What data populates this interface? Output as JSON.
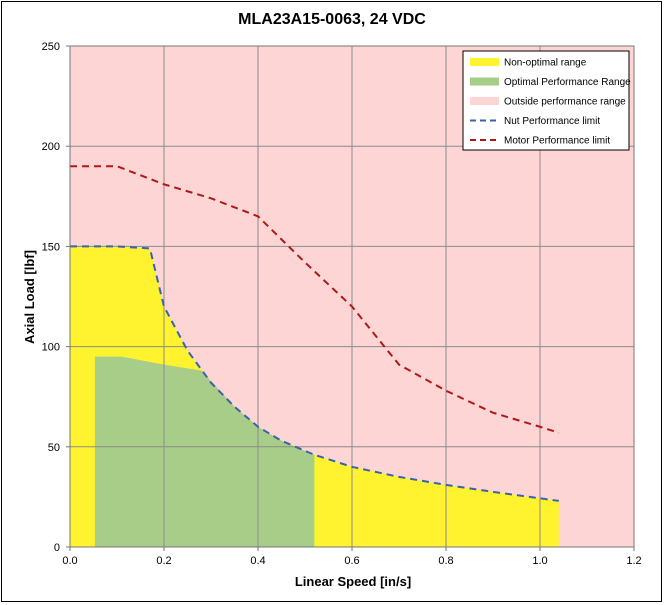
{
  "chart_data": {
    "type": "area",
    "title": "MLA23A15-0063, 24 VDC",
    "xlabel": "Linear Speed [in/s]",
    "ylabel": "Axial Load [lbf]",
    "xlim": [
      0,
      1.2
    ],
    "ylim": [
      0,
      250
    ],
    "x_ticks": [
      "0.0",
      "0.2",
      "0.4",
      "0.6",
      "0.8",
      "1.0",
      "1.2"
    ],
    "y_ticks": [
      "0",
      "50",
      "100",
      "150",
      "200",
      "250"
    ],
    "x_tick_values": [
      0,
      0.2,
      0.4,
      0.6,
      0.8,
      1.0,
      1.2
    ],
    "y_tick_values": [
      0,
      50,
      100,
      150,
      200,
      250
    ],
    "grid": true,
    "legend_position": "top-right",
    "colors": {
      "background": "#fdd5d5",
      "non_optimal": "#fff22e",
      "optimal": "#a7cd88",
      "nut_line": "#3a64a8",
      "motor_line": "#b01818",
      "grid": "#8c8c8c"
    },
    "series": [
      {
        "name": "Non-optimal range",
        "kind": "area",
        "x": [
          0,
          0.1,
          0.17,
          0.2,
          0.25,
          0.3,
          0.35,
          0.4,
          0.45,
          0.52,
          0.6,
          0.7,
          0.8,
          0.9,
          1.04,
          1.04
        ],
        "y": [
          150,
          150,
          149,
          120,
          98,
          82,
          70,
          60,
          53,
          46,
          40,
          35,
          31,
          27.5,
          23,
          0
        ]
      },
      {
        "name": "Optimal Performance Range",
        "kind": "area",
        "x": [
          0.053,
          0.053,
          0.11,
          0.2,
          0.28,
          0.35,
          0.4,
          0.45,
          0.52,
          0.52
        ],
        "y": [
          0,
          95,
          95,
          91,
          88,
          70,
          60,
          53,
          46,
          0
        ]
      },
      {
        "name": "Outside performance range",
        "kind": "area"
      },
      {
        "name": "Nut Performance limit",
        "kind": "line",
        "x": [
          0,
          0.1,
          0.17,
          0.2,
          0.25,
          0.3,
          0.35,
          0.4,
          0.45,
          0.52,
          0.6,
          0.7,
          0.8,
          0.9,
          1.04
        ],
        "y": [
          150,
          150,
          149,
          120,
          98,
          82,
          70,
          60,
          53,
          46,
          40,
          35,
          31,
          27.5,
          23
        ]
      },
      {
        "name": "Motor Performance limit",
        "kind": "line",
        "x": [
          0,
          0.1,
          0.2,
          0.3,
          0.4,
          0.5,
          0.6,
          0.7,
          0.8,
          0.9,
          1.0,
          1.04
        ],
        "y": [
          190,
          190,
          181,
          174,
          165,
          142,
          120,
          91,
          78,
          67,
          60,
          57
        ]
      }
    ]
  }
}
